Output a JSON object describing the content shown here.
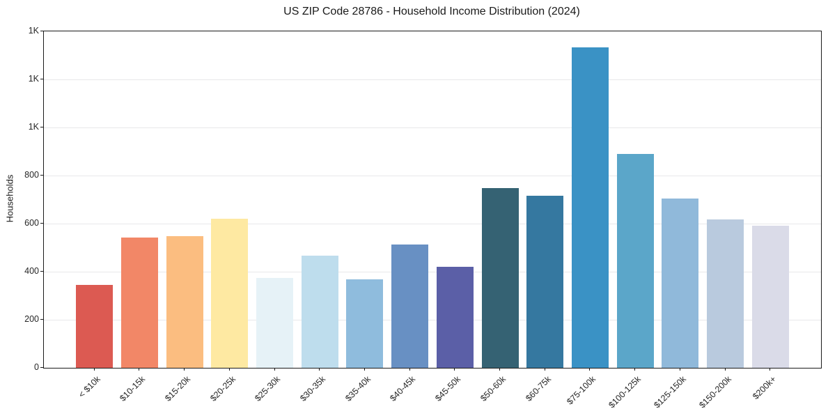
{
  "chart_data": {
    "type": "bar",
    "title": "US ZIP Code 28786 - Household Income Distribution (2024)",
    "xlabel": "",
    "ylabel": "Households",
    "categories": [
      "< $10k",
      "$10-15k",
      "$15-20k",
      "$20-25k",
      "$25-30k",
      "$30-35k",
      "$35-40k",
      "$40-45k",
      "$45-50k",
      "$50-60k",
      "$60-75k",
      "$75-100k",
      "$100-125k",
      "$125-150k",
      "$150-200k",
      "$200k+"
    ],
    "values": [
      345,
      542,
      548,
      620,
      374,
      468,
      367,
      514,
      419,
      749,
      717,
      1333,
      891,
      703,
      617,
      590
    ],
    "bar_colors": [
      "#dc5a52",
      "#f28767",
      "#fbbd80",
      "#fee9a2",
      "#e6f2f7",
      "#bedded",
      "#8fbcdd",
      "#6890c3",
      "#5b5fa7",
      "#356273",
      "#3578a0",
      "#3a92c5",
      "#5ba6c9",
      "#90b9da",
      "#b9cade",
      "#dadbe8"
    ],
    "ylim": [
      0,
      1400
    ],
    "yticks": [
      {
        "value": 0,
        "label": "0"
      },
      {
        "value": 200,
        "label": "200"
      },
      {
        "value": 400,
        "label": "400"
      },
      {
        "value": 600,
        "label": "600"
      },
      {
        "value": 800,
        "label": "800"
      },
      {
        "value": 1000,
        "label": "1K"
      },
      {
        "value": 1200,
        "label": "1K"
      },
      {
        "value": 1400,
        "label": "1K"
      }
    ],
    "grid": "horizontal",
    "legend": "none",
    "axis_color": "#1a1a1a",
    "grid_color": "#e8e8ea"
  }
}
